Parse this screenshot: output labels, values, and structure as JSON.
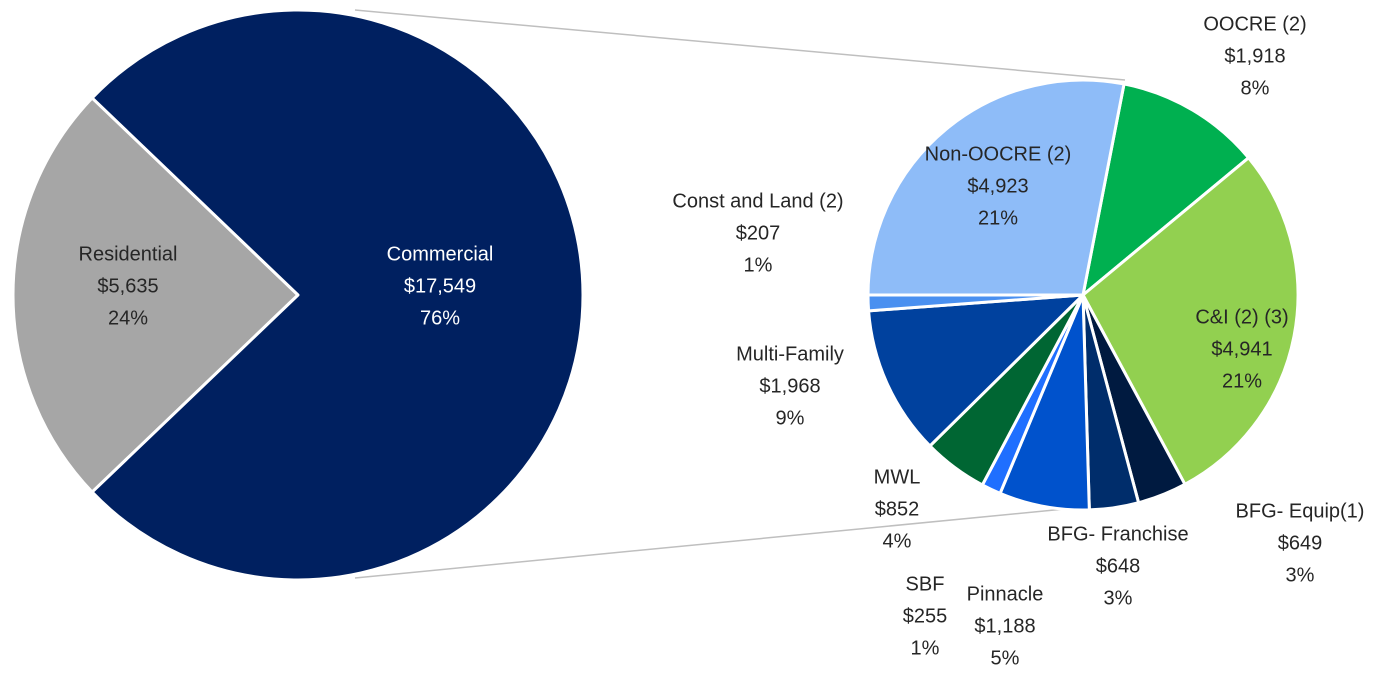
{
  "chart_data": [
    {
      "type": "pie",
      "categories": [
        "Residential",
        "Commercial"
      ],
      "values": [
        5635,
        17549
      ],
      "value_labels": [
        "$5,635",
        "$17,549"
      ],
      "percent_labels": [
        "24%",
        "76%"
      ],
      "colors": [
        "#a6a6a6",
        "#002060"
      ]
    },
    {
      "type": "pie",
      "categories": [
        "OOCRE (2)",
        "C&I (2) (3)",
        "BFG- Equip(1)",
        "BFG- Franchise",
        "Pinnacle",
        "SBF",
        "MWL",
        "Multi-Family",
        "Const and Land (2)",
        "Non-OOCRE (2)"
      ],
      "values": [
        1918,
        4941,
        649,
        648,
        1188,
        255,
        852,
        1968,
        207,
        4923
      ],
      "value_labels": [
        "$1,918",
        "$4,941",
        "$649",
        "$648",
        "$1,188",
        "$255",
        "$852",
        "$1,968",
        "$207",
        "$4,923"
      ],
      "percent_labels": [
        "8%",
        "21%",
        "3%",
        "3%",
        "5%",
        "1%",
        "4%",
        "9%",
        "1%",
        "21%"
      ],
      "colors": [
        "#00b050",
        "#92d050",
        "#001a40",
        "#002d6b",
        "#0052cc",
        "#1f6fff",
        "#006633",
        "#00419e",
        "#4a90f0",
        "#8ebcf8"
      ]
    }
  ]
}
